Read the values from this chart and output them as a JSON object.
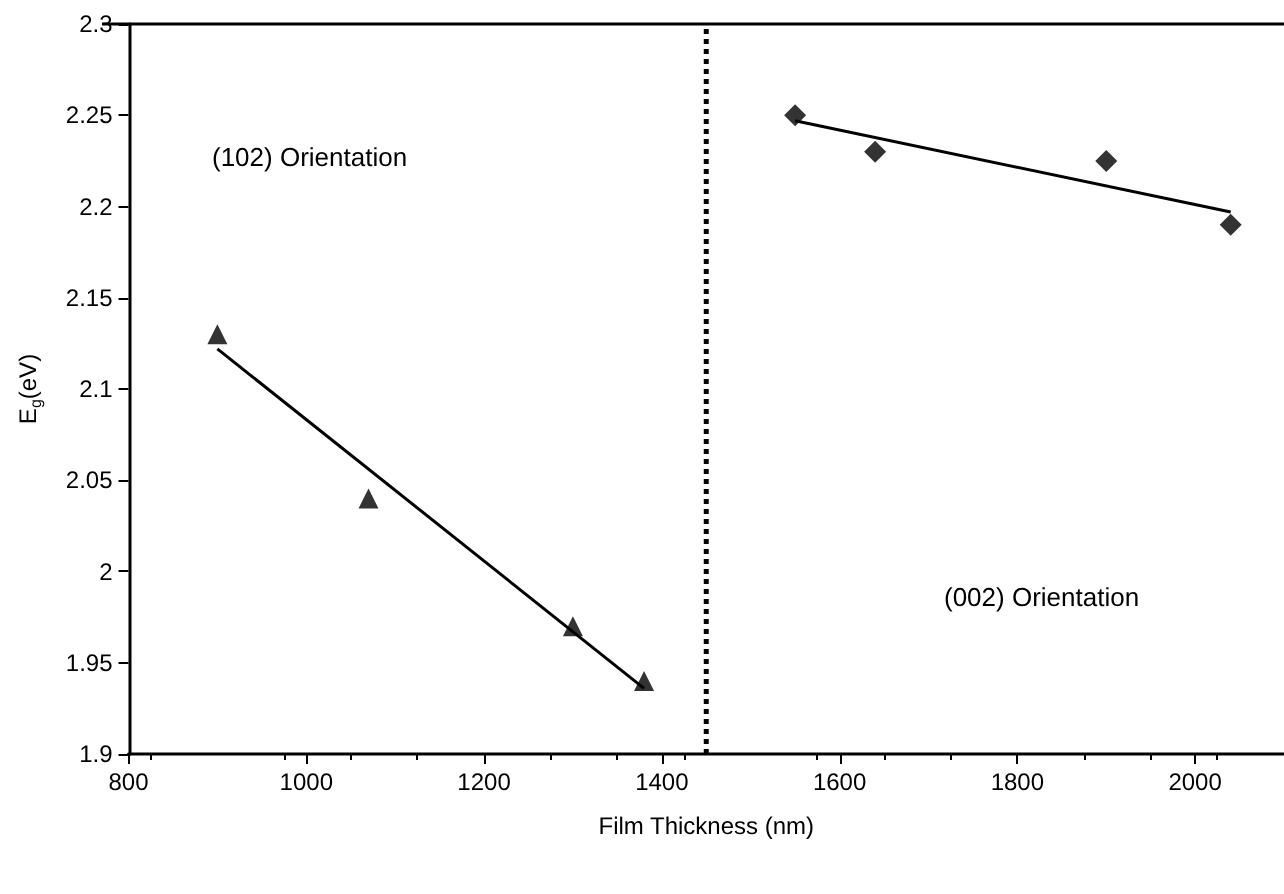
{
  "chart_data": {
    "type": "scatter",
    "xlabel": "Film Thickness (nm)",
    "ylabel": "E$_{g}$(eV)",
    "xlim": [
      800,
      2100
    ],
    "xticks": [
      800,
      1000,
      1200,
      1400,
      1600,
      1800,
      2000
    ],
    "ylim": [
      1.9,
      2.3
    ],
    "yticks": [
      1.9,
      1.95,
      2,
      2.05,
      2.1,
      2.15,
      2.2,
      2.25,
      2.3
    ],
    "grid": false,
    "series": [
      {
        "marker": "triangle",
        "color": "#000000",
        "x": [
          900,
          1070,
          1300,
          1380
        ],
        "values": [
          2.13,
          2.04,
          1.97,
          1.94
        ]
      },
      {
        "type": "line",
        "marker": "none",
        "color": "#000000",
        "x": [
          900,
          1380
        ],
        "values": [
          2.122,
          1.936
        ]
      },
      {
        "marker": "diamond",
        "color": "#000000",
        "x": [
          1550,
          1640,
          1900,
          2040
        ],
        "values": [
          2.25,
          2.23,
          2.225,
          2.19
        ]
      },
      {
        "type": "line",
        "marker": "none",
        "color": "#000000",
        "x": [
          1550,
          2040
        ],
        "values": [
          2.247,
          2.197
        ]
      }
    ],
    "ref_lines": [
      {
        "axis": "x",
        "value": 1450,
        "line_style": "dotted",
        "color": "#000000"
      }
    ],
    "annotations": [
      "(102) Orientation",
      "(002) Orientation"
    ]
  }
}
